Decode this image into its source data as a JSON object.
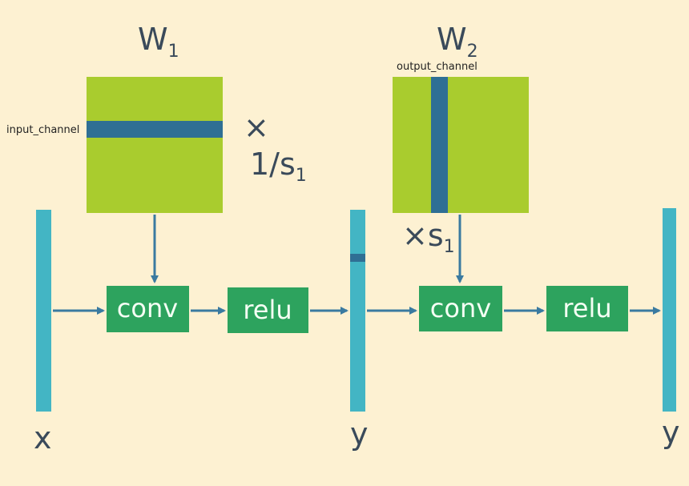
{
  "colors": {
    "background": "#fdf1d2",
    "weight_fill": "#a9cc2e",
    "highlight": "#2f6f94",
    "bar": "#43b5c4",
    "op_box": "#2da35e",
    "arrow": "#3a7aa0",
    "text": "#3a4a5a"
  },
  "weights": [
    {
      "letter": "W",
      "sub": "1",
      "highlight_label": "input_channel",
      "scale_x": "×",
      "scale_expr": "1/s",
      "scale_sub": "1"
    },
    {
      "letter": "W",
      "sub": "2",
      "highlight_label": "output_channel",
      "scale_x": "×",
      "scale_expr": "s",
      "scale_sub": "1"
    }
  ],
  "ops": [
    {
      "label": "conv"
    },
    {
      "label": "relu"
    },
    {
      "label": "conv"
    },
    {
      "label": "relu"
    }
  ],
  "tensors": [
    {
      "label": "x"
    },
    {
      "label": "y"
    },
    {
      "label": "y"
    }
  ]
}
